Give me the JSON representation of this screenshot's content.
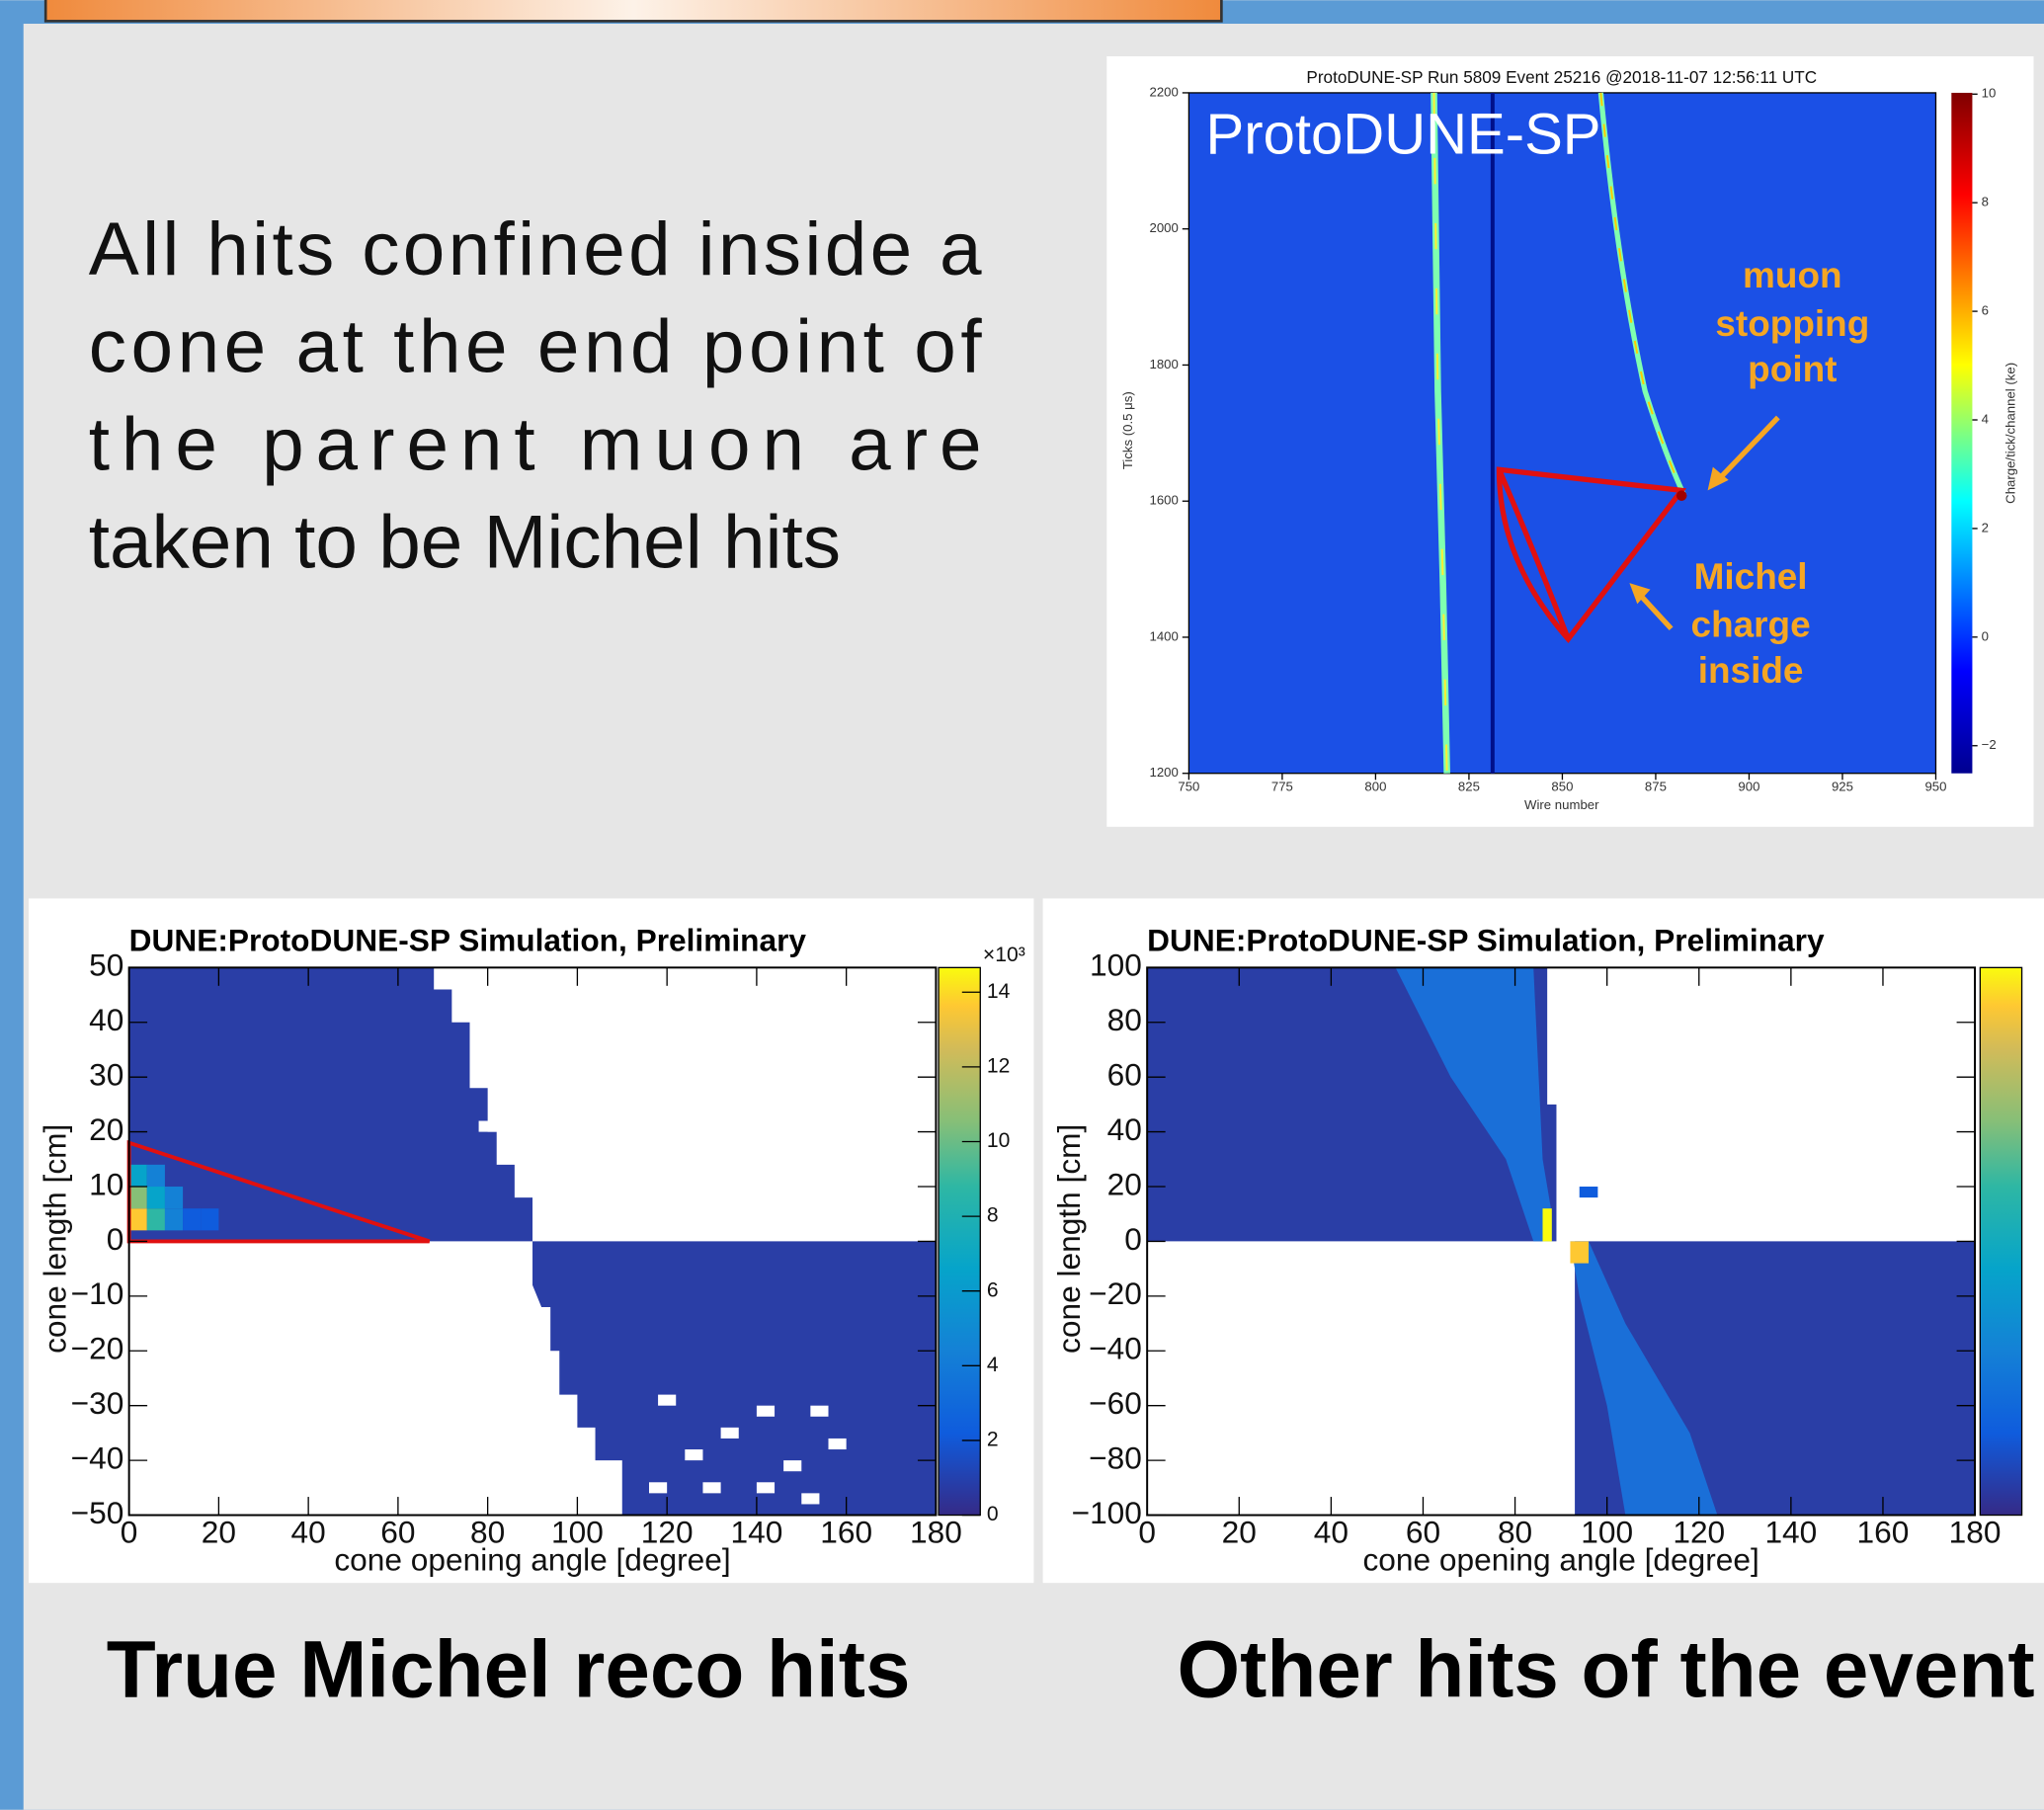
{
  "body_text": [
    "All hits confined inside a",
    "cone at the end point of",
    "the parent muon are",
    "taken to be Michel hits"
  ],
  "event_display": {
    "title": "ProtoDUNE-SP Run 5809 Event 25216 @2018-11-07 12:56:11 UTC",
    "overlay_label": "ProtoDUNE-SP",
    "annotations": [
      "muon",
      "stopping",
      "point",
      "Michel",
      "charge",
      "inside"
    ],
    "x_label": "Wire number",
    "y_label": "Ticks (0.5 μs)",
    "colorbar_label": "Charge/tick/channel (ke)",
    "xticks": [
      "750",
      "775",
      "800",
      "825",
      "850",
      "875",
      "900",
      "925",
      "950"
    ],
    "yticks": [
      "2200",
      "2000",
      "1800",
      "1600",
      "1400",
      "1200"
    ],
    "colorbar_ticks": [
      "10",
      "8",
      "6",
      "4",
      "2",
      "0",
      "−2"
    ]
  },
  "histograms": [
    {
      "title": "DUNE:ProtoDUNE-SP Simulation, Preliminary",
      "x_label": "cone opening angle [degree]",
      "y_label": "cone length [cm]",
      "xticks": [
        "0",
        "20",
        "40",
        "60",
        "80",
        "100",
        "120",
        "140",
        "160",
        "180"
      ],
      "yticks": [
        "50",
        "40",
        "30",
        "20",
        "10",
        "0",
        "−10",
        "−20",
        "−30",
        "−40",
        "−50"
      ],
      "colorbar_ticks": [
        "14",
        "12",
        "10",
        "8",
        "6",
        "4",
        "2",
        "0"
      ],
      "colorbar_exponent": "×10³"
    },
    {
      "title": "DUNE:ProtoDUNE-SP Simulation, Preliminary",
      "x_label": "cone opening angle [degree]",
      "y_label": "cone length [cm]",
      "xticks": [
        "0",
        "20",
        "40",
        "60",
        "80",
        "100",
        "120",
        "140",
        "160",
        "180"
      ],
      "yticks": [
        "100",
        "80",
        "60",
        "40",
        "20",
        "0",
        "−20",
        "−40",
        "−60",
        "−80",
        "−100"
      ]
    }
  ],
  "captions": [
    "True Michel reco hits",
    "Other hits of the event"
  ]
}
